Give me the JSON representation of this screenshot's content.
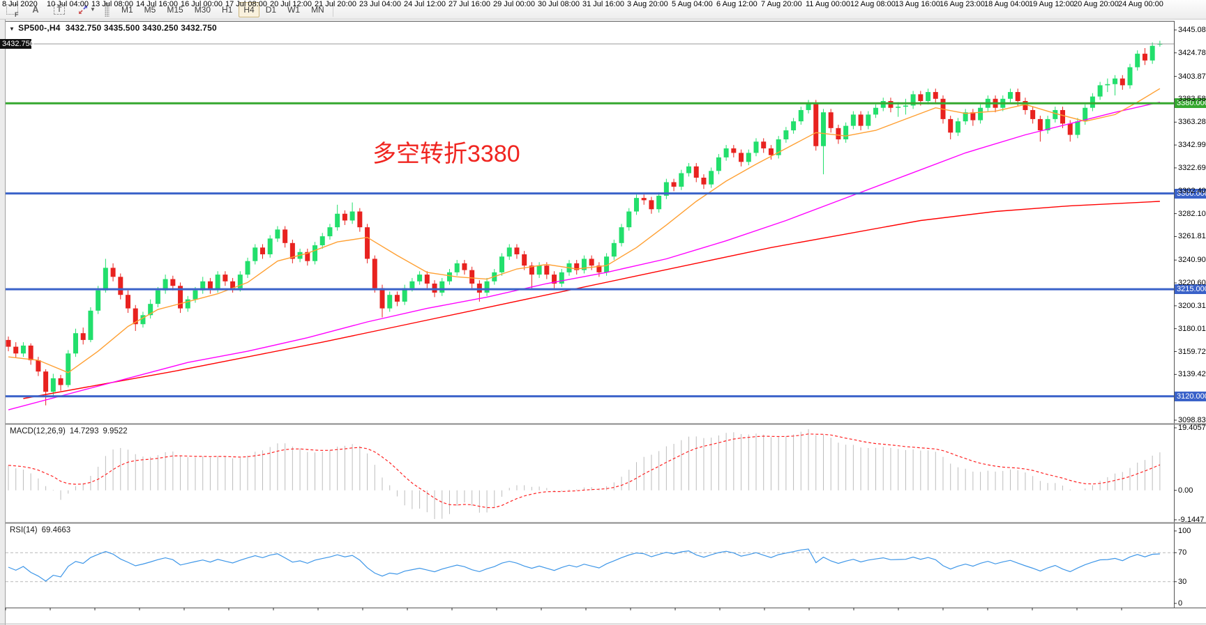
{
  "toolbar": {
    "tools": [
      {
        "name": "fibo-grid",
        "label": "F"
      },
      {
        "name": "text",
        "label": "A"
      },
      {
        "name": "text-label",
        "label": "T"
      },
      {
        "name": "arrows",
        "label": ""
      }
    ],
    "timeframes": [
      "M1",
      "M5",
      "M15",
      "M30",
      "H1",
      "H4",
      "D1",
      "W1",
      "MN"
    ],
    "active_timeframe": "H4"
  },
  "chart": {
    "symbol": "SP500-,H4",
    "ohlc_display": "3432.750 3435.500 3430.250 3432.750",
    "annotation": {
      "text": "多空转折3380",
      "color": "#f02520"
    },
    "current_price": {
      "value": 3432.75,
      "label": "3432.750"
    },
    "price_axis_labels": [
      "3445.080",
      "3424.785",
      "3403.875",
      "3383.580",
      "3363.285",
      "3342.990",
      "3322.695",
      "3302.400",
      "3282.105",
      "3261.810",
      "3240.900",
      "3220.605",
      "3200.310",
      "3180.015",
      "3159.720",
      "3139.425",
      "3098.835"
    ],
    "levels": [
      {
        "value": 3380,
        "label": "3380.000",
        "color": "#35a82f"
      },
      {
        "value": 3300,
        "label": "3300.000",
        "color": "#3a62c9"
      },
      {
        "value": 3215,
        "label": "3215.000",
        "color": "#3a62c9"
      },
      {
        "value": 3120,
        "label": "3120.000",
        "color": "#3a62c9"
      }
    ],
    "time_axis_labels": [
      "8 Jul 2020",
      "10 Jul 04:00",
      "13 Jul 08:00",
      "14 Jul 16:00",
      "16 Jul 00:00",
      "17 Jul 08:00",
      "20 Jul 12:00",
      "21 Jul 20:00",
      "23 Jul 04:00",
      "24 Jul 12:00",
      "27 Jul 16:00",
      "29 Jul 00:00",
      "30 Jul 08:00",
      "31 Jul 16:00",
      "3 Aug 20:00",
      "5 Aug 04:00",
      "6 Aug 12:00",
      "7 Aug 20:00",
      "11 Aug 00:00",
      "12 Aug 08:00",
      "13 Aug 16:00",
      "16 Aug 23:00",
      "18 Aug 04:00",
      "19 Aug 12:00",
      "20 Aug 20:00",
      "24 Aug 00:00"
    ]
  },
  "macd": {
    "title": "MACD(12,26,9)",
    "main_value": "14.7293",
    "signal_value": "9.9522",
    "axis_labels": [
      "19.4057",
      "0.00",
      "-9.1447"
    ],
    "axis_values": [
      19.4057,
      0,
      -9.1447
    ]
  },
  "rsi": {
    "title": "RSI(14)",
    "value": "69.4663",
    "axis_labels": [
      "100",
      "70",
      "30",
      "0"
    ],
    "axis_values": [
      100,
      70,
      30,
      0
    ],
    "levels": [
      70,
      30
    ]
  },
  "chart_data": {
    "type": "candlestick-ohlc",
    "symbol": "SP500-",
    "timeframe": "H4",
    "title": "SP500-,H4 3432.750 3435.500 3430.250 3432.750",
    "ylim": [
      3098.835,
      3445.08
    ],
    "x_tick_labels": [
      "8 Jul 2020",
      "10 Jul 04:00",
      "13 Jul 08:00",
      "14 Jul 16:00",
      "16 Jul 00:00",
      "17 Jul 08:00",
      "20 Jul 12:00",
      "21 Jul 20:00",
      "23 Jul 04:00",
      "24 Jul 12:00",
      "27 Jul 16:00",
      "29 Jul 00:00",
      "30 Jul 08:00",
      "31 Jul 16:00",
      "3 Aug 20:00",
      "5 Aug 04:00",
      "6 Aug 12:00",
      "7 Aug 20:00",
      "11 Aug 00:00",
      "12 Aug 08:00",
      "13 Aug 16:00",
      "16 Aug 23:00",
      "18 Aug 04:00",
      "19 Aug 12:00",
      "20 Aug 20:00",
      "24 Aug 00:00"
    ],
    "bars_per_tick": 6,
    "hlines": [
      {
        "price": 3380,
        "color": "green",
        "note": "多空转折3380"
      },
      {
        "price": 3300,
        "color": "blue"
      },
      {
        "price": 3215,
        "color": "blue"
      },
      {
        "price": 3120,
        "color": "blue"
      }
    ],
    "current_price": 3432.75,
    "candles": [
      [
        3170,
        3173,
        3160,
        3164
      ],
      [
        3164,
        3168,
        3154,
        3158
      ],
      [
        3158,
        3168,
        3155,
        3165
      ],
      [
        3165,
        3167,
        3148,
        3152
      ],
      [
        3152,
        3155,
        3138,
        3142
      ],
      [
        3142,
        3144,
        3112,
        3124
      ],
      [
        3124,
        3140,
        3120,
        3136
      ],
      [
        3136,
        3139,
        3125,
        3130
      ],
      [
        3130,
        3161,
        3128,
        3158
      ],
      [
        3158,
        3180,
        3155,
        3176
      ],
      [
        3176,
        3181,
        3166,
        3170
      ],
      [
        3170,
        3199,
        3168,
        3196
      ],
      [
        3196,
        3218,
        3193,
        3214
      ],
      [
        3214,
        3242,
        3212,
        3234
      ],
      [
        3234,
        3238,
        3222,
        3226
      ],
      [
        3226,
        3229,
        3206,
        3210
      ],
      [
        3210,
        3214,
        3194,
        3198
      ],
      [
        3198,
        3201,
        3178,
        3184
      ],
      [
        3184,
        3195,
        3181,
        3192
      ],
      [
        3192,
        3206,
        3189,
        3202
      ],
      [
        3202,
        3217,
        3199,
        3214
      ],
      [
        3214,
        3228,
        3211,
        3224
      ],
      [
        3224,
        3227,
        3214,
        3218
      ],
      [
        3218,
        3221,
        3194,
        3198
      ],
      [
        3198,
        3209,
        3195,
        3206
      ],
      [
        3206,
        3217,
        3203,
        3214
      ],
      [
        3214,
        3226,
        3211,
        3222
      ],
      [
        3222,
        3225,
        3211,
        3215
      ],
      [
        3215,
        3231,
        3212,
        3228
      ],
      [
        3228,
        3231,
        3218,
        3222
      ],
      [
        3222,
        3225,
        3212,
        3216
      ],
      [
        3216,
        3231,
        3213,
        3228
      ],
      [
        3228,
        3243,
        3225,
        3240
      ],
      [
        3240,
        3255,
        3237,
        3252
      ],
      [
        3252,
        3255,
        3242,
        3246
      ],
      [
        3246,
        3263,
        3243,
        3260
      ],
      [
        3260,
        3271,
        3257,
        3268
      ],
      [
        3268,
        3271,
        3252,
        3256
      ],
      [
        3256,
        3259,
        3238,
        3242
      ],
      [
        3242,
        3251,
        3239,
        3248
      ],
      [
        3248,
        3251,
        3236,
        3240
      ],
      [
        3240,
        3257,
        3237,
        3254
      ],
      [
        3254,
        3265,
        3251,
        3262
      ],
      [
        3262,
        3273,
        3259,
        3270
      ],
      [
        3270,
        3290,
        3267,
        3282
      ],
      [
        3282,
        3285,
        3272,
        3276
      ],
      [
        3276,
        3292,
        3273,
        3284
      ],
      [
        3284,
        3287,
        3266,
        3270
      ],
      [
        3270,
        3273,
        3238,
        3242
      ],
      [
        3242,
        3245,
        3212,
        3216
      ],
      [
        3216,
        3219,
        3190,
        3198
      ],
      [
        3198,
        3213,
        3195,
        3210
      ],
      [
        3210,
        3213,
        3200,
        3204
      ],
      [
        3204,
        3219,
        3201,
        3216
      ],
      [
        3216,
        3225,
        3213,
        3222
      ],
      [
        3222,
        3231,
        3219,
        3228
      ],
      [
        3228,
        3231,
        3216,
        3220
      ],
      [
        3220,
        3223,
        3208,
        3212
      ],
      [
        3212,
        3225,
        3209,
        3222
      ],
      [
        3222,
        3233,
        3219,
        3230
      ],
      [
        3230,
        3241,
        3227,
        3238
      ],
      [
        3238,
        3241,
        3228,
        3232
      ],
      [
        3232,
        3235,
        3216,
        3220
      ],
      [
        3220,
        3223,
        3204,
        3212
      ],
      [
        3212,
        3225,
        3209,
        3222
      ],
      [
        3222,
        3233,
        3219,
        3230
      ],
      [
        3230,
        3247,
        3227,
        3244
      ],
      [
        3244,
        3255,
        3241,
        3252
      ],
      [
        3252,
        3255,
        3242,
        3246
      ],
      [
        3246,
        3249,
        3232,
        3236
      ],
      [
        3236,
        3239,
        3216,
        3228
      ],
      [
        3228,
        3239,
        3225,
        3236
      ],
      [
        3236,
        3239,
        3224,
        3228
      ],
      [
        3228,
        3231,
        3216,
        3220
      ],
      [
        3220,
        3233,
        3217,
        3230
      ],
      [
        3230,
        3241,
        3227,
        3238
      ],
      [
        3238,
        3241,
        3228,
        3232
      ],
      [
        3232,
        3245,
        3229,
        3242
      ],
      [
        3242,
        3245,
        3232,
        3236
      ],
      [
        3236,
        3239,
        3226,
        3230
      ],
      [
        3230,
        3247,
        3227,
        3244
      ],
      [
        3244,
        3259,
        3241,
        3256
      ],
      [
        3256,
        3273,
        3253,
        3270
      ],
      [
        3270,
        3287,
        3267,
        3284
      ],
      [
        3284,
        3299,
        3281,
        3296
      ],
      [
        3296,
        3299,
        3290,
        3294
      ],
      [
        3294,
        3297,
        3282,
        3286
      ],
      [
        3286,
        3301,
        3283,
        3298
      ],
      [
        3298,
        3313,
        3295,
        3310
      ],
      [
        3310,
        3313,
        3302,
        3306
      ],
      [
        3306,
        3321,
        3303,
        3318
      ],
      [
        3318,
        3327,
        3315,
        3324
      ],
      [
        3324,
        3327,
        3310,
        3314
      ],
      [
        3314,
        3317,
        3304,
        3308
      ],
      [
        3308,
        3323,
        3305,
        3320
      ],
      [
        3320,
        3335,
        3317,
        3332
      ],
      [
        3332,
        3343,
        3329,
        3340
      ],
      [
        3340,
        3343,
        3332,
        3336
      ],
      [
        3336,
        3339,
        3324,
        3328
      ],
      [
        3328,
        3339,
        3325,
        3336
      ],
      [
        3336,
        3349,
        3333,
        3346
      ],
      [
        3346,
        3349,
        3336,
        3340
      ],
      [
        3340,
        3343,
        3330,
        3334
      ],
      [
        3334,
        3351,
        3331,
        3348
      ],
      [
        3348,
        3359,
        3345,
        3356
      ],
      [
        3356,
        3367,
        3353,
        3364
      ],
      [
        3364,
        3377,
        3361,
        3374
      ],
      [
        3374,
        3383,
        3371,
        3380
      ],
      [
        3380,
        3383,
        3338,
        3342
      ],
      [
        3342,
        3375,
        3317,
        3372
      ],
      [
        3372,
        3375,
        3354,
        3358
      ],
      [
        3358,
        3361,
        3344,
        3348
      ],
      [
        3348,
        3363,
        3345,
        3360
      ],
      [
        3360,
        3373,
        3357,
        3370
      ],
      [
        3370,
        3373,
        3356,
        3360
      ],
      [
        3360,
        3373,
        3357,
        3370
      ],
      [
        3370,
        3379,
        3367,
        3376
      ],
      [
        3376,
        3385,
        3373,
        3382
      ],
      [
        3382,
        3385,
        3372,
        3376
      ],
      [
        3376,
        3381,
        3368,
        3377
      ],
      [
        3377,
        3384,
        3370,
        3378
      ],
      [
        3378,
        3391,
        3375,
        3388
      ],
      [
        3388,
        3391,
        3378,
        3382
      ],
      [
        3382,
        3393,
        3379,
        3390
      ],
      [
        3390,
        3393,
        3380,
        3384
      ],
      [
        3384,
        3387,
        3362,
        3366
      ],
      [
        3366,
        3369,
        3348,
        3354
      ],
      [
        3354,
        3367,
        3351,
        3364
      ],
      [
        3364,
        3375,
        3361,
        3372
      ],
      [
        3372,
        3375,
        3360,
        3365
      ],
      [
        3365,
        3379,
        3362,
        3376
      ],
      [
        3376,
        3387,
        3373,
        3384
      ],
      [
        3384,
        3387,
        3372,
        3376
      ],
      [
        3376,
        3387,
        3373,
        3384
      ],
      [
        3384,
        3393,
        3381,
        3390
      ],
      [
        3390,
        3393,
        3378,
        3382
      ],
      [
        3382,
        3385,
        3370,
        3374
      ],
      [
        3374,
        3377,
        3362,
        3366
      ],
      [
        3366,
        3369,
        3346,
        3356
      ],
      [
        3356,
        3369,
        3353,
        3366
      ],
      [
        3366,
        3377,
        3363,
        3374
      ],
      [
        3374,
        3377,
        3358,
        3362
      ],
      [
        3362,
        3365,
        3346,
        3352
      ],
      [
        3352,
        3367,
        3349,
        3364
      ],
      [
        3364,
        3379,
        3361,
        3376
      ],
      [
        3376,
        3389,
        3373,
        3386
      ],
      [
        3386,
        3399,
        3383,
        3396
      ],
      [
        3396,
        3402,
        3390,
        3397
      ],
      [
        3397,
        3405,
        3387,
        3402
      ],
      [
        3402,
        3405,
        3392,
        3396
      ],
      [
        3396,
        3415,
        3393,
        3412
      ],
      [
        3412,
        3427,
        3409,
        3424
      ],
      [
        3424,
        3429,
        3414,
        3418
      ],
      [
        3418,
        3434,
        3415,
        3431
      ],
      [
        3432.75,
        3435.5,
        3430.25,
        3432.75
      ]
    ],
    "ma_fast_orange": [
      [
        0,
        3155
      ],
      [
        4,
        3152
      ],
      [
        8,
        3141
      ],
      [
        12,
        3160
      ],
      [
        16,
        3182
      ],
      [
        20,
        3197
      ],
      [
        24,
        3204
      ],
      [
        28,
        3211
      ],
      [
        32,
        3221
      ],
      [
        36,
        3240
      ],
      [
        40,
        3247
      ],
      [
        44,
        3257
      ],
      [
        48,
        3261
      ],
      [
        52,
        3245
      ],
      [
        56,
        3230
      ],
      [
        60,
        3226
      ],
      [
        64,
        3224
      ],
      [
        68,
        3233
      ],
      [
        72,
        3237
      ],
      [
        76,
        3233
      ],
      [
        80,
        3236
      ],
      [
        84,
        3252
      ],
      [
        88,
        3272
      ],
      [
        92,
        3293
      ],
      [
        96,
        3311
      ],
      [
        100,
        3326
      ],
      [
        104,
        3340
      ],
      [
        108,
        3354
      ],
      [
        112,
        3351
      ],
      [
        116,
        3356
      ],
      [
        120,
        3366
      ],
      [
        124,
        3376
      ],
      [
        128,
        3371
      ],
      [
        132,
        3373
      ],
      [
        136,
        3379
      ],
      [
        140,
        3371
      ],
      [
        144,
        3364
      ],
      [
        148,
        3370
      ],
      [
        151,
        3381
      ],
      [
        154,
        3393
      ]
    ],
    "ma_mid_magenta": [
      [
        0,
        3108
      ],
      [
        8,
        3122
      ],
      [
        16,
        3136
      ],
      [
        24,
        3150
      ],
      [
        32,
        3160
      ],
      [
        40,
        3172
      ],
      [
        48,
        3186
      ],
      [
        56,
        3198
      ],
      [
        64,
        3208
      ],
      [
        72,
        3220
      ],
      [
        80,
        3230
      ],
      [
        88,
        3242
      ],
      [
        96,
        3258
      ],
      [
        104,
        3276
      ],
      [
        112,
        3296
      ],
      [
        120,
        3316
      ],
      [
        128,
        3336
      ],
      [
        136,
        3352
      ],
      [
        142,
        3362
      ],
      [
        148,
        3372
      ],
      [
        154,
        3381
      ]
    ],
    "ma_slow_red": [
      [
        2,
        3118
      ],
      [
        12,
        3130
      ],
      [
        22,
        3142
      ],
      [
        32,
        3155
      ],
      [
        42,
        3168
      ],
      [
        52,
        3182
      ],
      [
        62,
        3196
      ],
      [
        72,
        3210
      ],
      [
        82,
        3224
      ],
      [
        92,
        3238
      ],
      [
        102,
        3252
      ],
      [
        112,
        3264
      ],
      [
        122,
        3276
      ],
      [
        132,
        3284
      ],
      [
        142,
        3289
      ],
      [
        154,
        3293
      ]
    ],
    "macd": {
      "fast": 12,
      "slow": 26,
      "signal": 9,
      "last_main": 14.7293,
      "last_signal": 9.9522,
      "range": [
        -9.1447,
        19.4057
      ]
    },
    "rsi": {
      "period": 14,
      "last": 69.4663,
      "range": [
        0,
        100
      ],
      "levels": [
        30,
        70
      ]
    }
  },
  "colors": {
    "bull": "#22df6c",
    "bear": "#e8221f",
    "ma_fast": "#ffa033",
    "ma_mid": "#ff00ff",
    "ma_slow": "#ff0000",
    "macd_hist": "#bcbcbc",
    "macd_signal": "#ff2222",
    "rsi_line": "#3d96e8",
    "level_green": "#35a82f",
    "level_blue": "#3a62c9",
    "price_line": "#9a9a9a",
    "badge_current_bg": "#111111"
  }
}
